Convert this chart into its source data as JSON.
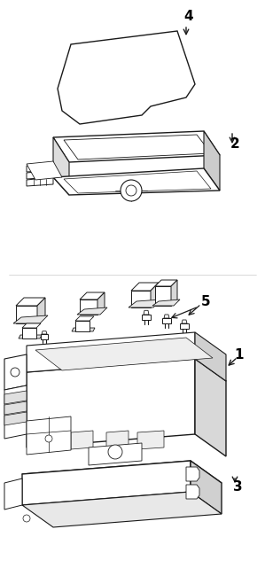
{
  "background_color": "#ffffff",
  "line_color": "#1a1a1a",
  "label_color": "#000000",
  "fig_width": 2.99,
  "fig_height": 6.41,
  "dpi": 100,
  "label_fontsize": 10,
  "label_fontweight": "bold"
}
